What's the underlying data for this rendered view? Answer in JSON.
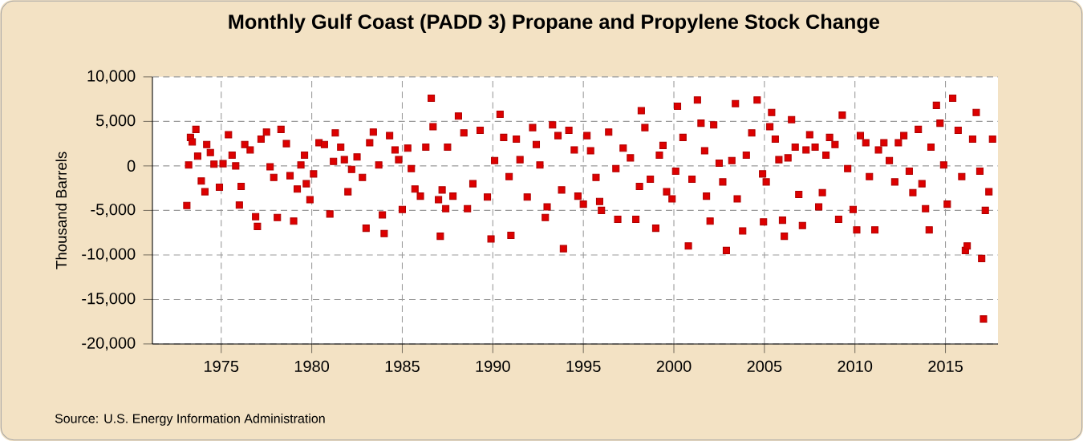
{
  "chart_data": {
    "type": "scatter",
    "title": "Monthly Gulf Coast (PADD 3) Propane and Propylene Stock Change",
    "ylabel": "Thousand Barrels",
    "annotations": [
      "Source: U.S. Energy Information Administration"
    ],
    "xlim": [
      1971.2,
      2017.9
    ],
    "xticks": [
      1975,
      1980,
      1985,
      1990,
      1995,
      2000,
      2005,
      2010,
      2015
    ],
    "ylim": [
      -20000,
      10000
    ],
    "yticks": [
      {
        "value": -20000,
        "label": "-20,000"
      },
      {
        "value": -15000,
        "label": "-15,000"
      },
      {
        "value": -10000,
        "label": "-10,000"
      },
      {
        "value": -5000,
        "label": "-5,000"
      },
      0,
      {
        "value": 5000,
        "label": "5,000"
      },
      {
        "value": 10000,
        "label": "10,000"
      }
    ],
    "grid": true,
    "marker": "square",
    "series": [
      {
        "color": "#dd0000",
        "x": [
          1973.1,
          1973.2,
          1973.3,
          1973.4,
          1973.6,
          1973.7,
          1973.9,
          1974.1,
          1974.2,
          1974.4,
          1974.6,
          1974.9,
          1975.1,
          1975.4,
          1975.6,
          1975.8,
          1976.0,
          1976.1,
          1976.3,
          1976.6,
          1976.9,
          1977.0,
          1977.2,
          1977.5,
          1977.7,
          1977.9,
          1978.1,
          1978.3,
          1978.6,
          1978.8,
          1979.0,
          1979.2,
          1979.4,
          1979.6,
          1979.7,
          1979.9,
          1980.1,
          1980.4,
          1980.7,
          1981.0,
          1981.2,
          1981.3,
          1981.6,
          1981.8,
          1982.0,
          1982.2,
          1982.5,
          1982.8,
          1983.0,
          1983.2,
          1983.4,
          1983.7,
          1983.9,
          1984.0,
          1984.3,
          1984.6,
          1984.8,
          1985.0,
          1985.3,
          1985.5,
          1985.7,
          1986.0,
          1986.3,
          1986.6,
          1986.7,
          1987.0,
          1987.1,
          1987.4,
          1987.2,
          1987.5,
          1987.8,
          1988.1,
          1988.4,
          1988.6,
          1988.9,
          1989.3,
          1989.7,
          1989.9,
          1990.1,
          1990.4,
          1990.6,
          1990.9,
          1991.0,
          1991.3,
          1991.5,
          1991.9,
          1992.2,
          1992.4,
          1992.6,
          1992.9,
          1993.0,
          1993.3,
          1993.6,
          1993.8,
          1993.9,
          1994.2,
          1994.5,
          1994.7,
          1995.0,
          1995.2,
          1995.4,
          1995.7,
          1995.9,
          1996.0,
          1996.4,
          1996.8,
          1996.9,
          1997.2,
          1997.6,
          1997.9,
          1998.1,
          1998.2,
          1998.4,
          1998.7,
          1999.0,
          1999.2,
          1999.4,
          1999.6,
          1999.9,
          2000.1,
          2000.2,
          2000.5,
          2000.8,
          2001.0,
          2001.3,
          2001.5,
          2001.7,
          2001.8,
          2002.0,
          2002.2,
          2002.5,
          2002.7,
          2002.9,
          2003.2,
          2003.4,
          2003.5,
          2003.8,
          2004.0,
          2004.3,
          2004.6,
          2004.9,
          2004.95,
          2005.1,
          2005.3,
          2005.4,
          2005.6,
          2005.8,
          2006.0,
          2006.1,
          2006.3,
          2006.5,
          2006.7,
          2006.9,
          2007.1,
          2007.3,
          2007.5,
          2007.8,
          2008.0,
          2008.2,
          2008.4,
          2008.6,
          2008.9,
          2009.1,
          2009.3,
          2009.6,
          2009.9,
          2010.1,
          2010.3,
          2010.6,
          2010.8,
          2011.1,
          2011.3,
          2011.6,
          2011.9,
          2012.2,
          2012.4,
          2012.7,
          2013.0,
          2013.2,
          2013.5,
          2013.7,
          2013.9,
          2014.1,
          2014.2,
          2014.5,
          2014.7,
          2014.9,
          2015.1,
          2015.4,
          2015.7,
          2015.9,
          2016.1,
          2016.2,
          2016.5,
          2016.7,
          2016.9,
          2017.0,
          2017.1,
          2017.2,
          2017.4,
          2017.6
        ],
        "values": [
          -4450,
          100,
          3200,
          2700,
          4100,
          1100,
          -1700,
          -2900,
          2400,
          1500,
          200,
          -2400,
          250,
          3500,
          1200,
          0,
          -4400,
          -2300,
          2400,
          1800,
          -5700,
          -6800,
          3000,
          3800,
          -100,
          -1300,
          -5800,
          4100,
          2500,
          -1100,
          -6200,
          -2600,
          100,
          1200,
          -2000,
          -3800,
          -900,
          2600,
          2400,
          -5400,
          500,
          3700,
          2100,
          700,
          -2900,
          -400,
          1000,
          -1300,
          -7000,
          2600,
          3800,
          100,
          -5500,
          -7600,
          3400,
          1800,
          700,
          -4900,
          2000,
          -300,
          -2600,
          -3400,
          2100,
          7600,
          4400,
          -3800,
          -7900,
          -4800,
          -2700,
          2100,
          -3400,
          5600,
          3700,
          -4800,
          -2000,
          4000,
          -3500,
          -8200,
          600,
          5800,
          3200,
          -1200,
          -7800,
          3000,
          700,
          -3500,
          4300,
          2400,
          100,
          -5800,
          -4600,
          4600,
          3400,
          -2700,
          -9300,
          4000,
          1800,
          -3400,
          -4300,
          3400,
          1700,
          -1300,
          -4000,
          -5000,
          3800,
          -300,
          -6000,
          2000,
          900,
          -6000,
          -2300,
          6200,
          4300,
          -1500,
          -7000,
          1200,
          2300,
          -2900,
          -3700,
          -600,
          6700,
          3200,
          -9000,
          -1500,
          7400,
          4800,
          1700,
          -3400,
          -6200,
          4600,
          300,
          -1800,
          -9500,
          600,
          7000,
          -3700,
          -7300,
          1200,
          3700,
          7400,
          -900,
          -6300,
          -1800,
          4400,
          6000,
          3000,
          700,
          -6100,
          -7900,
          900,
          5200,
          2100,
          -3200,
          -6700,
          1800,
          3500,
          2100,
          -4600,
          -3000,
          1200,
          3200,
          2400,
          -6000,
          5700,
          -300,
          -4900,
          -7200,
          3400,
          2600,
          -1200,
          -7200,
          1800,
          2600,
          600,
          -1800,
          2600,
          3400,
          -600,
          -3000,
          4100,
          -2000,
          -4800,
          -7200,
          2100,
          6800,
          4800,
          100,
          -4300,
          7600,
          4000,
          -1200,
          -9500,
          -9000,
          3000,
          6000,
          -600,
          -10400,
          -17200,
          -5000,
          -2900,
          3000
        ]
      }
    ]
  }
}
